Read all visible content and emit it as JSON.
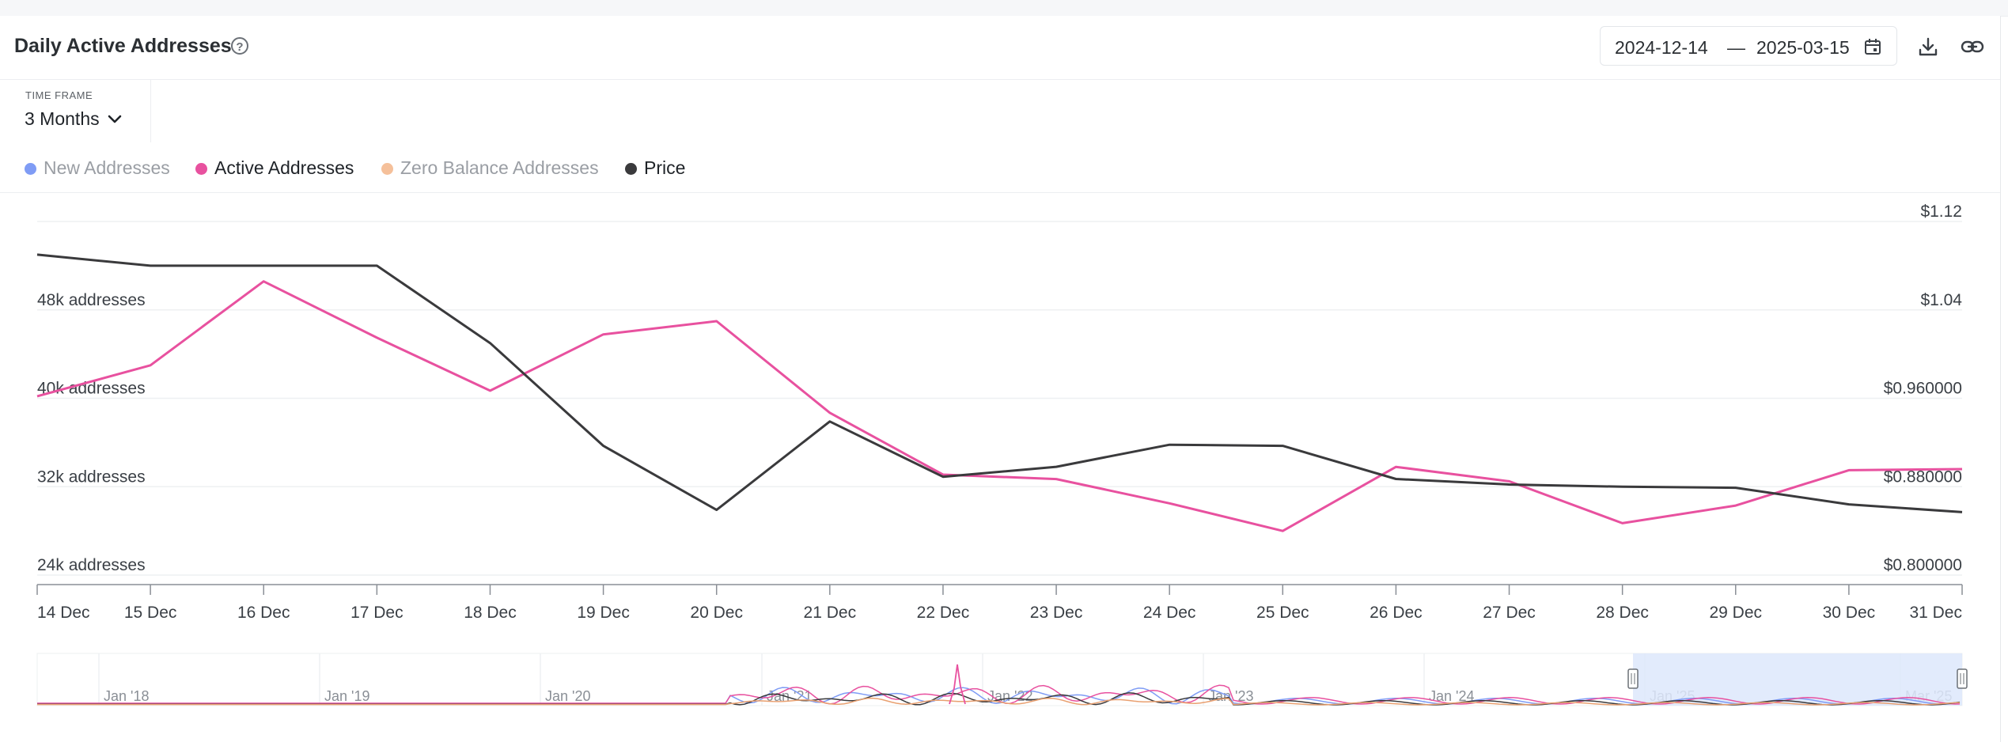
{
  "header": {
    "title": "Daily Active Addresses",
    "help_icon": "question-circle-icon"
  },
  "date_range": {
    "start": "2024-12-14",
    "separator": "—",
    "end": "2025-03-15",
    "calendar_icon": "calendar-icon"
  },
  "actions": {
    "download_icon": "download-icon",
    "link_icon": "link-icon"
  },
  "time_frame": {
    "label": "TIME FRAME",
    "value": "3 Months",
    "chevron_icon": "chevron-down-icon"
  },
  "legend": [
    {
      "label": "New Addresses",
      "color": "#7f9cf5",
      "active": false
    },
    {
      "label": "Active Addresses",
      "color": "#e8519f",
      "active": true
    },
    {
      "label": "Zero Balance Addresses",
      "color": "#f5c09a",
      "active": false
    },
    {
      "label": "Price",
      "color": "#3a3a3c",
      "active": true
    }
  ],
  "chart_data": {
    "type": "line",
    "x": [
      "14 Dec",
      "15 Dec",
      "16 Dec",
      "17 Dec",
      "18 Dec",
      "19 Dec",
      "20 Dec",
      "21 Dec",
      "22 Dec",
      "23 Dec",
      "24 Dec",
      "25 Dec",
      "26 Dec",
      "27 Dec",
      "28 Dec",
      "29 Dec",
      "30 Dec",
      "31 Dec"
    ],
    "y_left": {
      "ticks": [
        24000,
        32000,
        40000,
        48000
      ],
      "tick_labels": [
        "24k addresses",
        "32k addresses",
        "40k addresses",
        "48k addresses"
      ],
      "range": [
        24000,
        49000
      ]
    },
    "y_right": {
      "ticks": [
        0.8,
        0.88,
        0.96,
        1.04,
        1.12
      ],
      "tick_labels": [
        "$0.800000",
        "$0.880000",
        "$0.960000",
        "$1.04",
        "$1.12"
      ],
      "range": [
        0.8,
        1.12
      ]
    },
    "series": [
      {
        "name": "Active Addresses",
        "axis": "left",
        "color": "#e8519f",
        "values": [
          40200,
          43000,
          50600,
          45500,
          40700,
          45800,
          47000,
          38700,
          33100,
          32700,
          30500,
          28000,
          33800,
          32500,
          28700,
          30300,
          33500,
          33600
        ]
      },
      {
        "name": "Price",
        "axis": "right",
        "color": "#3a3a3c",
        "values": [
          1.09,
          1.08,
          1.08,
          1.08,
          1.01,
          0.917,
          0.859,
          0.939,
          0.889,
          0.898,
          0.918,
          0.917,
          0.887,
          0.882,
          0.88,
          0.879,
          0.864,
          0.857
        ]
      }
    ],
    "grid": true
  },
  "navigator": {
    "labels": [
      "Jan '18",
      "Jan '19",
      "Jan '20",
      "Jan '21",
      "Jan '22",
      "Jan '23",
      "Jan '24",
      "Jan '25",
      "Mar '25"
    ],
    "colors": {
      "selection": "#dde7fb",
      "active": "#e8519f",
      "price": "#3a3a3c",
      "zero": "#e9a070",
      "new": "#7f9cf5"
    }
  }
}
